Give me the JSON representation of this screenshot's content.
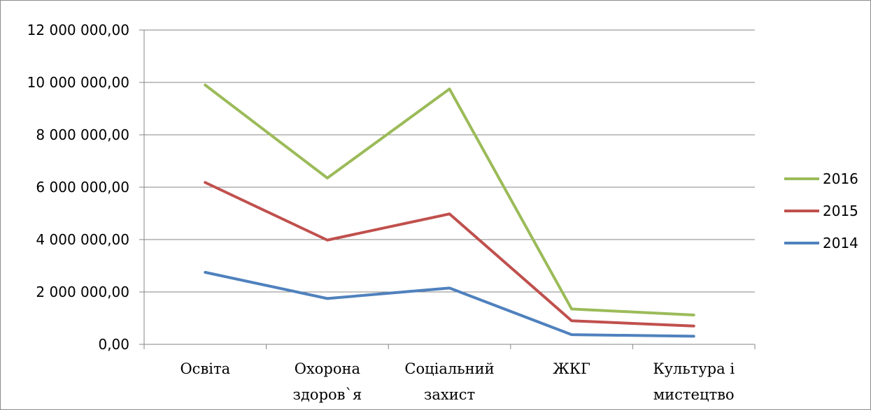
{
  "chart_data": {
    "type": "line",
    "title": "",
    "xlabel": "",
    "ylabel": "",
    "categories": [
      [
        "Освіта"
      ],
      [
        "Охорона",
        "здоров`я"
      ],
      [
        "Соціальний",
        "захист"
      ],
      [
        "ЖКГ"
      ],
      [
        "Культура і",
        "мистецтво"
      ]
    ],
    "ylim": [
      0,
      12000000
    ],
    "yticks": [
      0,
      2000000,
      4000000,
      6000000,
      8000000,
      10000000,
      12000000
    ],
    "ytick_labels": [
      "0,00",
      "2 000 000,00",
      "4 000 000,00",
      "6 000 000,00",
      "8 000 000,00",
      "10 000 000,00",
      "12 000 000,00"
    ],
    "grid": true,
    "legend_position": "right",
    "series": [
      {
        "name": "2016",
        "color": "#9bbb59",
        "values": [
          9900000,
          6350000,
          9750000,
          1350000,
          1120000
        ]
      },
      {
        "name": "2015",
        "color": "#c0504d",
        "values": [
          6180000,
          3980000,
          4980000,
          900000,
          700000
        ]
      },
      {
        "name": "2014",
        "color": "#4f81bd",
        "values": [
          2750000,
          1750000,
          2150000,
          370000,
          310000
        ]
      }
    ]
  }
}
